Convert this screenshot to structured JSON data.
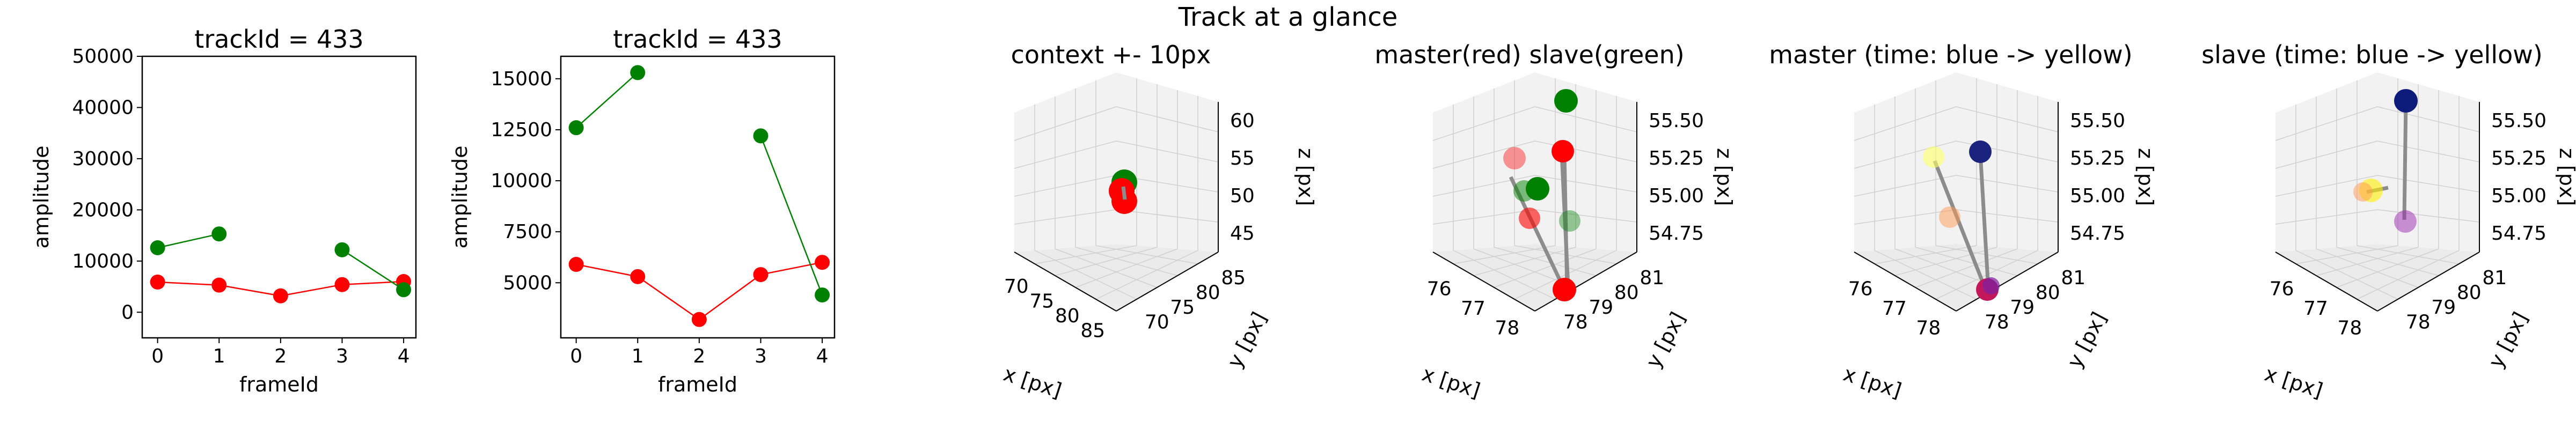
{
  "figure": {
    "suptitle": "Track at a glance"
  },
  "chart_data": [
    {
      "type": "line",
      "title": "trackId = 433",
      "xlabel": "frameId",
      "ylabel": "amplitude",
      "xlim": [
        -0.25,
        4.2
      ],
      "ylim": [
        -5000,
        50000
      ],
      "xticks": [
        "0",
        "1",
        "2",
        "3",
        "4"
      ],
      "yticks": [
        "0",
        "10000",
        "20000",
        "30000",
        "40000",
        "50000"
      ],
      "series": [
        {
          "color": "#ff0000",
          "segments": [
            [
              [
                0,
                5900
              ],
              [
                1,
                5300
              ],
              [
                2,
                3200
              ],
              [
                3,
                5400
              ],
              [
                4,
                6000
              ]
            ]
          ]
        },
        {
          "color": "#008000",
          "segments": [
            [
              [
                0,
                12600
              ],
              [
                1,
                15300
              ]
            ],
            [
              [
                3,
                12200
              ],
              [
                4,
                4400
              ]
            ]
          ]
        }
      ]
    },
    {
      "type": "line",
      "title": "trackId = 433",
      "xlabel": "frameId",
      "ylabel": "amplitude",
      "xlim": [
        -0.25,
        4.2
      ],
      "ylim": [
        2300,
        16100
      ],
      "xticks": [
        "0",
        "1",
        "2",
        "3",
        "4"
      ],
      "yticks": [
        "5000",
        "7500",
        "10000",
        "12500",
        "15000"
      ],
      "series": [
        {
          "color": "#ff0000",
          "segments": [
            [
              [
                0,
                5900
              ],
              [
                1,
                5300
              ],
              [
                2,
                3200
              ],
              [
                3,
                5400
              ],
              [
                4,
                6000
              ]
            ]
          ]
        },
        {
          "color": "#008000",
          "segments": [
            [
              [
                0,
                12600
              ],
              [
                1,
                15300
              ]
            ],
            [
              [
                3,
                12200
              ],
              [
                4,
                4400
              ]
            ]
          ]
        }
      ]
    },
    {
      "type": "scatter",
      "projection": "3d",
      "title": "context +- 10px",
      "xlabel": "x [px]",
      "ylabel": "y [px]",
      "zlabel": "z [px]",
      "xticks": [
        "70",
        "75",
        "80",
        "85"
      ],
      "yticks": [
        "70",
        "75",
        "80",
        "85"
      ],
      "zticks": [
        "45",
        "50",
        "55",
        "60"
      ],
      "points": [
        {
          "x": 78.0,
          "y": 79.0,
          "z": 55.0,
          "color": "#008000"
        },
        {
          "x": 77.5,
          "y": 79.5,
          "z": 54.8,
          "color": "#ff0000"
        },
        {
          "x": 77.8,
          "y": 79.2,
          "z": 54.0,
          "color": "#ff0000"
        }
      ]
    },
    {
      "type": "scatter",
      "projection": "3d",
      "title": "master(red) slave(green)",
      "xlabel": "x [px]",
      "ylabel": "y [px]",
      "zlabel": "z [px]",
      "xticks": [
        "76",
        "77",
        "78"
      ],
      "yticks": [
        "78",
        "79",
        "80",
        "81"
      ],
      "zticks": [
        "54.75",
        "55.00",
        "55.25",
        "55.50"
      ]
    },
    {
      "type": "scatter",
      "projection": "3d",
      "title": "master (time: blue -> yellow)",
      "xlabel": "x [px]",
      "ylabel": "y [px]",
      "zlabel": "z [px]",
      "xticks": [
        "76",
        "77",
        "78"
      ],
      "yticks": [
        "78",
        "79",
        "80",
        "81"
      ],
      "zticks": [
        "54.75",
        "55.00",
        "55.25",
        "55.50"
      ]
    },
    {
      "type": "scatter",
      "projection": "3d",
      "title": "slave (time: blue -> yellow)",
      "xlabel": "x [px]",
      "ylabel": "y [px]",
      "zlabel": "z [px]",
      "xticks": [
        "76",
        "77",
        "78"
      ],
      "yticks": [
        "78",
        "79",
        "80",
        "81"
      ],
      "zticks": [
        "54.75",
        "55.00",
        "55.25",
        "55.50"
      ]
    }
  ]
}
